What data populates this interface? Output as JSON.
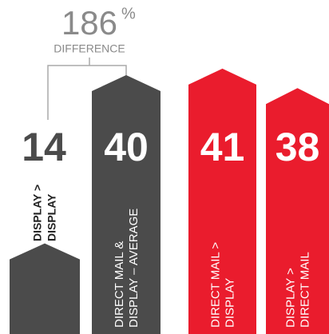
{
  "chart_data": {
    "type": "bar",
    "categories": [
      [
        "DISPLAY >",
        "DISPLAY"
      ],
      [
        "DIRECT MAIL &",
        "DISPLAY – AVERAGE"
      ],
      [
        "DIRECT MAIL >",
        "DISPLAY"
      ],
      [
        "DISPLAY >",
        "DIRECT MAIL"
      ]
    ],
    "values": [
      14,
      40,
      41,
      38
    ],
    "colors": [
      "#4b4b4b",
      "#4b4b4b",
      "#ea1c2d",
      "#ea1c2d"
    ],
    "annotation": {
      "value": 186,
      "unit": "%",
      "text": "DIFFERENCE"
    }
  }
}
